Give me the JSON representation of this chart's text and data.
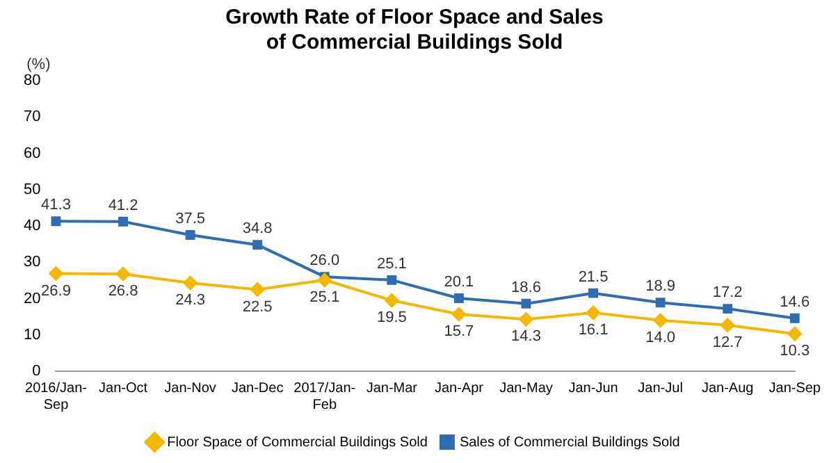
{
  "chart_data": {
    "type": "line",
    "title": "Growth Rate of Floor Space and Sales of Commercial Buildings Sold",
    "ylabel": "(%)",
    "categories": [
      "2016/Jan-Sep",
      "Jan-Oct",
      "Jan-Nov",
      "Jan-Dec",
      "2017/Jan-Feb",
      "Jan-Mar",
      "Jan-Apr",
      "Jan-May",
      "Jan-Jun",
      "Jan-Jul",
      "Jan-Aug",
      "Jan-Sep"
    ],
    "series": [
      {
        "name": "Floor Space of Commercial Buildings Sold",
        "color": "#f5b800",
        "marker": "diamond",
        "values": [
          26.9,
          26.8,
          24.3,
          22.5,
          25.1,
          19.5,
          15.7,
          14.3,
          16.1,
          14.0,
          12.7,
          10.3
        ],
        "value_labels": [
          "26.9",
          "26.8",
          "24.3",
          "22.5",
          "25.1",
          "19.5",
          "15.7",
          "14.3",
          "16.1",
          "14.0",
          "12.7",
          "10.3"
        ]
      },
      {
        "name": "Sales of Commercial Buildings Sold",
        "color": "#2e6db4",
        "marker": "square",
        "values": [
          41.3,
          41.2,
          37.5,
          34.8,
          26.0,
          25.1,
          20.1,
          18.6,
          21.5,
          18.9,
          17.2,
          14.6
        ],
        "value_labels": [
          "41.3",
          "41.2",
          "37.5",
          "34.8",
          "26.0",
          "25.1",
          "20.1",
          "18.6",
          "21.5",
          "18.9",
          "17.2",
          "14.6"
        ]
      }
    ],
    "ylim": [
      0,
      80
    ],
    "yticks": [
      0,
      10,
      20,
      30,
      40,
      50,
      60,
      70,
      80
    ],
    "grid": false,
    "legend": "bottom"
  }
}
